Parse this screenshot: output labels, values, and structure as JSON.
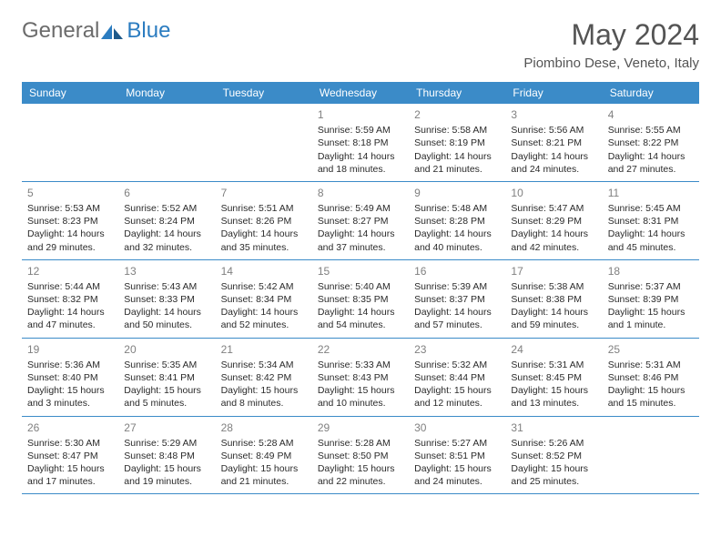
{
  "logo": {
    "text1": "General",
    "text2": "Blue"
  },
  "title": "May 2024",
  "location": "Piombino Dese, Veneto, Italy",
  "colors": {
    "header_bg": "#3b8bc8",
    "header_text": "#ffffff",
    "logo_gray": "#6b6b6b",
    "logo_blue": "#2b7cc0",
    "title_color": "#545454",
    "daynum_color": "#808080",
    "border_color": "#3b8bc8"
  },
  "day_names": [
    "Sunday",
    "Monday",
    "Tuesday",
    "Wednesday",
    "Thursday",
    "Friday",
    "Saturday"
  ],
  "weeks": [
    [
      null,
      null,
      null,
      {
        "n": "1",
        "sr": "5:59 AM",
        "ss": "8:18 PM",
        "dl": "14 hours and 18 minutes."
      },
      {
        "n": "2",
        "sr": "5:58 AM",
        "ss": "8:19 PM",
        "dl": "14 hours and 21 minutes."
      },
      {
        "n": "3",
        "sr": "5:56 AM",
        "ss": "8:21 PM",
        "dl": "14 hours and 24 minutes."
      },
      {
        "n": "4",
        "sr": "5:55 AM",
        "ss": "8:22 PM",
        "dl": "14 hours and 27 minutes."
      }
    ],
    [
      {
        "n": "5",
        "sr": "5:53 AM",
        "ss": "8:23 PM",
        "dl": "14 hours and 29 minutes."
      },
      {
        "n": "6",
        "sr": "5:52 AM",
        "ss": "8:24 PM",
        "dl": "14 hours and 32 minutes."
      },
      {
        "n": "7",
        "sr": "5:51 AM",
        "ss": "8:26 PM",
        "dl": "14 hours and 35 minutes."
      },
      {
        "n": "8",
        "sr": "5:49 AM",
        "ss": "8:27 PM",
        "dl": "14 hours and 37 minutes."
      },
      {
        "n": "9",
        "sr": "5:48 AM",
        "ss": "8:28 PM",
        "dl": "14 hours and 40 minutes."
      },
      {
        "n": "10",
        "sr": "5:47 AM",
        "ss": "8:29 PM",
        "dl": "14 hours and 42 minutes."
      },
      {
        "n": "11",
        "sr": "5:45 AM",
        "ss": "8:31 PM",
        "dl": "14 hours and 45 minutes."
      }
    ],
    [
      {
        "n": "12",
        "sr": "5:44 AM",
        "ss": "8:32 PM",
        "dl": "14 hours and 47 minutes."
      },
      {
        "n": "13",
        "sr": "5:43 AM",
        "ss": "8:33 PM",
        "dl": "14 hours and 50 minutes."
      },
      {
        "n": "14",
        "sr": "5:42 AM",
        "ss": "8:34 PM",
        "dl": "14 hours and 52 minutes."
      },
      {
        "n": "15",
        "sr": "5:40 AM",
        "ss": "8:35 PM",
        "dl": "14 hours and 54 minutes."
      },
      {
        "n": "16",
        "sr": "5:39 AM",
        "ss": "8:37 PM",
        "dl": "14 hours and 57 minutes."
      },
      {
        "n": "17",
        "sr": "5:38 AM",
        "ss": "8:38 PM",
        "dl": "14 hours and 59 minutes."
      },
      {
        "n": "18",
        "sr": "5:37 AM",
        "ss": "8:39 PM",
        "dl": "15 hours and 1 minute."
      }
    ],
    [
      {
        "n": "19",
        "sr": "5:36 AM",
        "ss": "8:40 PM",
        "dl": "15 hours and 3 minutes."
      },
      {
        "n": "20",
        "sr": "5:35 AM",
        "ss": "8:41 PM",
        "dl": "15 hours and 5 minutes."
      },
      {
        "n": "21",
        "sr": "5:34 AM",
        "ss": "8:42 PM",
        "dl": "15 hours and 8 minutes."
      },
      {
        "n": "22",
        "sr": "5:33 AM",
        "ss": "8:43 PM",
        "dl": "15 hours and 10 minutes."
      },
      {
        "n": "23",
        "sr": "5:32 AM",
        "ss": "8:44 PM",
        "dl": "15 hours and 12 minutes."
      },
      {
        "n": "24",
        "sr": "5:31 AM",
        "ss": "8:45 PM",
        "dl": "15 hours and 13 minutes."
      },
      {
        "n": "25",
        "sr": "5:31 AM",
        "ss": "8:46 PM",
        "dl": "15 hours and 15 minutes."
      }
    ],
    [
      {
        "n": "26",
        "sr": "5:30 AM",
        "ss": "8:47 PM",
        "dl": "15 hours and 17 minutes."
      },
      {
        "n": "27",
        "sr": "5:29 AM",
        "ss": "8:48 PM",
        "dl": "15 hours and 19 minutes."
      },
      {
        "n": "28",
        "sr": "5:28 AM",
        "ss": "8:49 PM",
        "dl": "15 hours and 21 minutes."
      },
      {
        "n": "29",
        "sr": "5:28 AM",
        "ss": "8:50 PM",
        "dl": "15 hours and 22 minutes."
      },
      {
        "n": "30",
        "sr": "5:27 AM",
        "ss": "8:51 PM",
        "dl": "15 hours and 24 minutes."
      },
      {
        "n": "31",
        "sr": "5:26 AM",
        "ss": "8:52 PM",
        "dl": "15 hours and 25 minutes."
      },
      null
    ]
  ]
}
